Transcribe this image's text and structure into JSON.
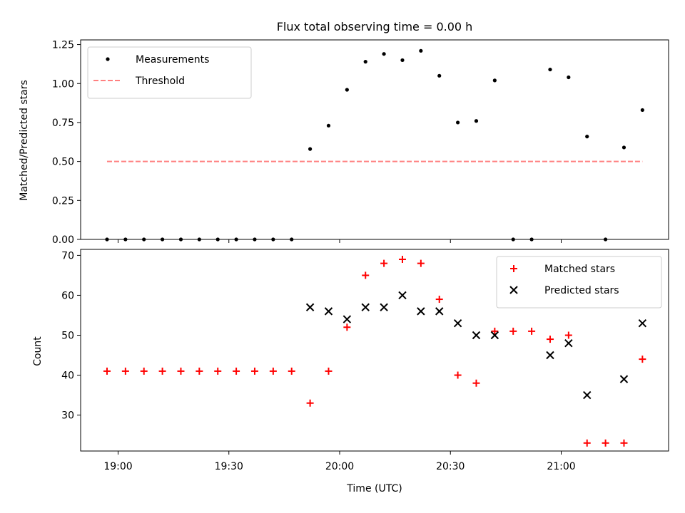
{
  "chart_data": [
    {
      "type": "scatter",
      "title": "Flux total observing time = 0.00 h",
      "xlabel": "",
      "ylabel": "Matched/Predicted stars",
      "ylim": [
        0,
        1.28
      ],
      "yticks": [
        "0.00",
        "0.25",
        "0.50",
        "0.75",
        "1.00",
        "1.25"
      ],
      "ytick_values": [
        0,
        0.25,
        0.5,
        0.75,
        1.0,
        1.25
      ],
      "legend": {
        "position": "top-left",
        "entries": [
          "Measurements",
          "Threshold"
        ]
      },
      "series": [
        {
          "name": "Measurements",
          "marker": "dot",
          "color": "#000000",
          "x": [
            "18:57",
            "19:02",
            "19:07",
            "19:12",
            "19:17",
            "19:22",
            "19:27",
            "19:32",
            "19:37",
            "19:42",
            "19:47",
            "19:52",
            "19:57",
            "20:02",
            "20:07",
            "20:12",
            "20:17",
            "20:22",
            "20:27",
            "20:32",
            "20:37",
            "20:42",
            "20:47",
            "20:52",
            "20:57",
            "21:02",
            "21:07",
            "21:12",
            "21:17",
            "21:22"
          ],
          "values": [
            0,
            0,
            0,
            0,
            0,
            0,
            0,
            0,
            0,
            0,
            0,
            0.58,
            0.73,
            0.96,
            1.14,
            1.19,
            1.15,
            1.21,
            1.05,
            0.75,
            0.76,
            1.02,
            0,
            0,
            1.09,
            1.04,
            0.66,
            0,
            0.59,
            0.83
          ]
        },
        {
          "name": "Threshold",
          "style": "dashed-line",
          "color": "#ff8080",
          "x": [
            "18:57",
            "21:22"
          ],
          "values": [
            0.5,
            0.5
          ]
        }
      ]
    },
    {
      "type": "scatter",
      "title": "",
      "xlabel": "Time (UTC)",
      "ylabel": "Count",
      "ylim": [
        21,
        71.5
      ],
      "yticks": [
        "30",
        "40",
        "50",
        "60",
        "70"
      ],
      "ytick_values": [
        30,
        40,
        50,
        60,
        70
      ],
      "xticks": [
        "19:00",
        "19:30",
        "20:00",
        "20:30",
        "21:00"
      ],
      "legend": {
        "position": "top-right",
        "entries": [
          "Matched stars",
          "Predicted stars"
        ]
      },
      "series": [
        {
          "name": "Matched stars",
          "marker": "plus",
          "color": "#ff0000",
          "x": [
            "18:57",
            "19:02",
            "19:07",
            "19:12",
            "19:17",
            "19:22",
            "19:27",
            "19:32",
            "19:37",
            "19:42",
            "19:47",
            "19:52",
            "19:57",
            "20:02",
            "20:07",
            "20:12",
            "20:17",
            "20:22",
            "20:27",
            "20:32",
            "20:37",
            "20:42",
            "20:47",
            "20:52",
            "20:57",
            "21:02",
            "21:07",
            "21:12",
            "21:17",
            "21:22"
          ],
          "values": [
            41,
            41,
            41,
            41,
            41,
            41,
            41,
            41,
            41,
            41,
            41,
            33,
            41,
            52,
            65,
            68,
            69,
            68,
            59,
            40,
            38,
            51,
            51,
            51,
            49,
            50,
            23,
            23,
            23,
            44
          ]
        },
        {
          "name": "Predicted stars",
          "marker": "x",
          "color": "#000000",
          "x": [
            "19:52",
            "19:57",
            "20:02",
            "20:07",
            "20:12",
            "20:17",
            "20:22",
            "20:27",
            "20:32",
            "20:37",
            "20:42",
            "20:57",
            "21:02",
            "21:07",
            "21:17",
            "21:22"
          ],
          "values": [
            57,
            56,
            54,
            57,
            57,
            60,
            56,
            56,
            53,
            50,
            50,
            45,
            48,
            35,
            39,
            53
          ]
        }
      ]
    }
  ]
}
